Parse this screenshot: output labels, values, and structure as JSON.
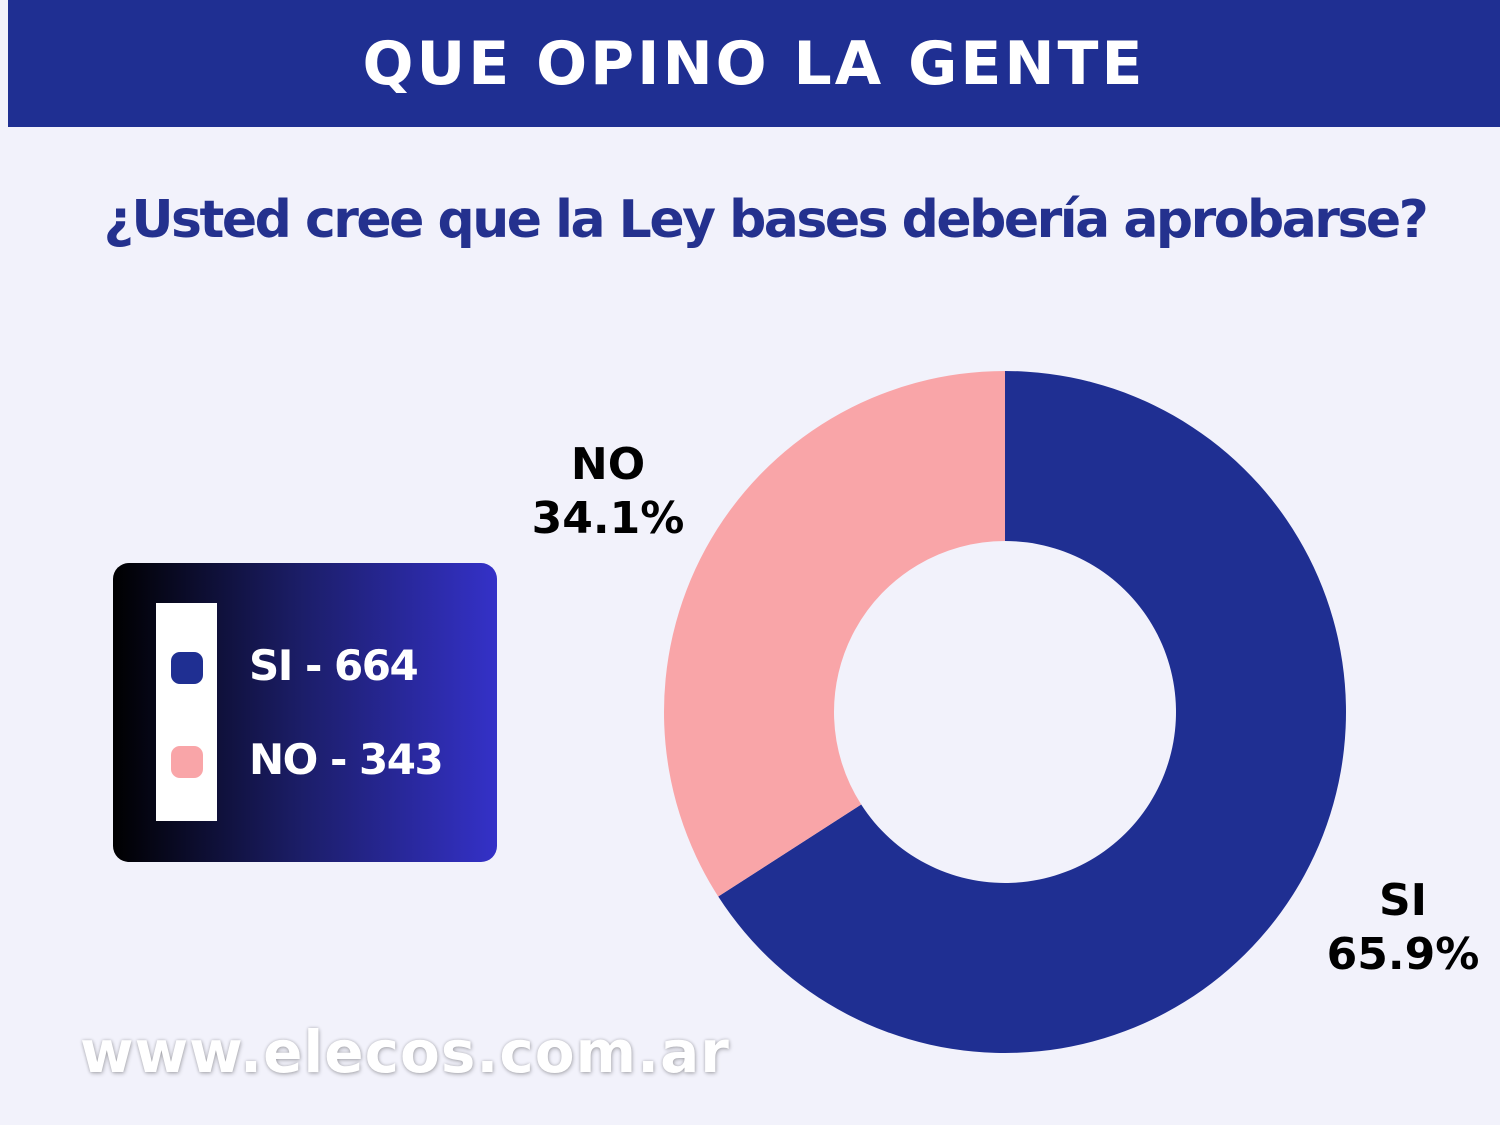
{
  "header": {
    "title": "QUE OPINO LA GENTE"
  },
  "question": "¿Usted cree que la Ley bases debería aprobarse?",
  "legend": {
    "items": [
      {
        "label": "SI - 664",
        "color": "#1f2f92"
      },
      {
        "label": "NO - 343",
        "color": "#f9a5a8"
      }
    ]
  },
  "footer": {
    "url": "www.elecos.com.ar"
  },
  "chart_data": {
    "type": "pie",
    "title": "",
    "categories": [
      "SI",
      "NO"
    ],
    "values": [
      65.9,
      34.1
    ],
    "counts": [
      664,
      343
    ],
    "colors": [
      "#1f2f92",
      "#f9a5a8"
    ],
    "donut": true,
    "slice_labels": [
      {
        "name": "SI",
        "value": "65.9%"
      },
      {
        "name": "NO",
        "value": "34.1%"
      }
    ]
  }
}
